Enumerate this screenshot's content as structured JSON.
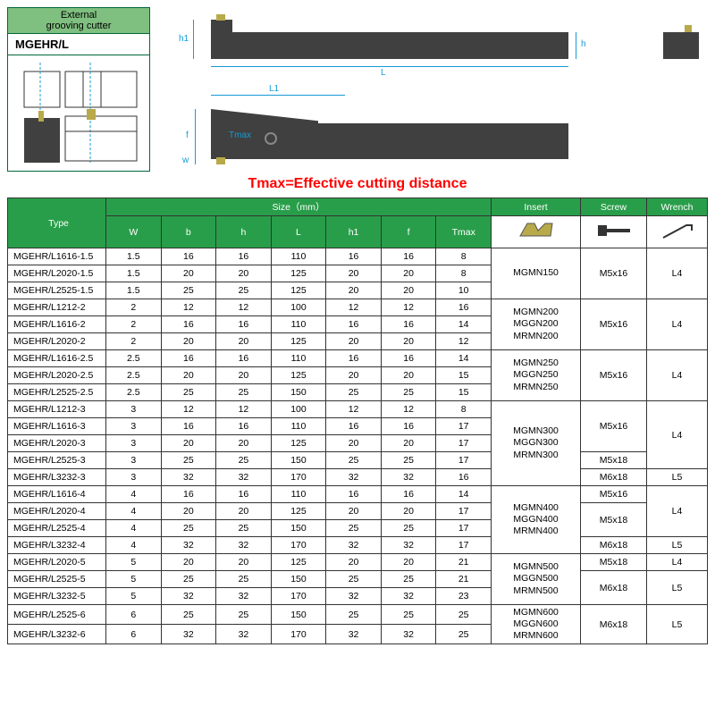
{
  "header": {
    "title_line1": "External",
    "title_line2": "grooving cutter",
    "model": "MGEHR/L"
  },
  "dims": {
    "h1": "h1",
    "h": "h",
    "L": "L",
    "L1": "L1",
    "f": "f",
    "w": "w",
    "Tmax": "Tmax"
  },
  "tmax_note": "Tmax=Effective cutting distance",
  "table": {
    "headers": {
      "type": "Type",
      "size": "Size（mm）",
      "size_cols": [
        "W",
        "b",
        "h",
        "L",
        "h1",
        "f",
        "Tmax"
      ],
      "insert": "Insert",
      "screw": "Screw",
      "wrench": "Wrench"
    },
    "groups": [
      {
        "rows": [
          {
            "type": "MGEHR/L1616-1.5",
            "W": "1.5",
            "b": "16",
            "h": "16",
            "L": "110",
            "h1": "16",
            "f": "16",
            "Tmax": "8"
          },
          {
            "type": "MGEHR/L2020-1.5",
            "W": "1.5",
            "b": "20",
            "h": "20",
            "L": "125",
            "h1": "20",
            "f": "20",
            "Tmax": "8"
          },
          {
            "type": "MGEHR/L2525-1.5",
            "W": "1.5",
            "b": "25",
            "h": "25",
            "L": "125",
            "h1": "20",
            "f": "20",
            "Tmax": "10"
          }
        ],
        "insert": [
          "MGMN150"
        ],
        "screw": [
          {
            "span": 3,
            "txt": "M5x16"
          }
        ],
        "wrench": [
          {
            "span": 3,
            "txt": "L4"
          }
        ]
      },
      {
        "rows": [
          {
            "type": "MGEHR/L1212-2",
            "W": "2",
            "b": "12",
            "h": "12",
            "L": "100",
            "h1": "12",
            "f": "12",
            "Tmax": "16"
          },
          {
            "type": "MGEHR/L1616-2",
            "W": "2",
            "b": "16",
            "h": "16",
            "L": "110",
            "h1": "16",
            "f": "16",
            "Tmax": "14"
          },
          {
            "type": "MGEHR/L2020-2",
            "W": "2",
            "b": "20",
            "h": "20",
            "L": "125",
            "h1": "20",
            "f": "20",
            "Tmax": "12"
          }
        ],
        "insert": [
          "MGMN200",
          "MGGN200",
          "MRMN200"
        ],
        "screw": [
          {
            "span": 3,
            "txt": "M5x16"
          }
        ],
        "wrench": [
          {
            "span": 3,
            "txt": "L4"
          }
        ]
      },
      {
        "rows": [
          {
            "type": "MGEHR/L1616-2.5",
            "W": "2.5",
            "b": "16",
            "h": "16",
            "L": "110",
            "h1": "16",
            "f": "16",
            "Tmax": "14"
          },
          {
            "type": "MGEHR/L2020-2.5",
            "W": "2.5",
            "b": "20",
            "h": "20",
            "L": "125",
            "h1": "20",
            "f": "20",
            "Tmax": "15"
          },
          {
            "type": "MGEHR/L2525-2.5",
            "W": "2.5",
            "b": "25",
            "h": "25",
            "L": "150",
            "h1": "25",
            "f": "25",
            "Tmax": "15"
          }
        ],
        "insert": [
          "MGMN250",
          "MGGN250",
          "MRMN250"
        ],
        "screw": [
          {
            "span": 3,
            "txt": "M5x16"
          }
        ],
        "wrench": [
          {
            "span": 3,
            "txt": "L4"
          }
        ]
      },
      {
        "rows": [
          {
            "type": "MGEHR/L1212-3",
            "W": "3",
            "b": "12",
            "h": "12",
            "L": "100",
            "h1": "12",
            "f": "12",
            "Tmax": "8"
          },
          {
            "type": "MGEHR/L1616-3",
            "W": "3",
            "b": "16",
            "h": "16",
            "L": "110",
            "h1": "16",
            "f": "16",
            "Tmax": "17"
          },
          {
            "type": "MGEHR/L2020-3",
            "W": "3",
            "b": "20",
            "h": "20",
            "L": "125",
            "h1": "20",
            "f": "20",
            "Tmax": "17"
          },
          {
            "type": "MGEHR/L2525-3",
            "W": "3",
            "b": "25",
            "h": "25",
            "L": "150",
            "h1": "25",
            "f": "25",
            "Tmax": "17"
          },
          {
            "type": "MGEHR/L3232-3",
            "W": "3",
            "b": "32",
            "h": "32",
            "L": "170",
            "h1": "32",
            "f": "32",
            "Tmax": "16"
          }
        ],
        "insert": [
          "MGMN300",
          "MGGN300",
          "MRMN300"
        ],
        "screw": [
          {
            "span": 3,
            "txt": "M5x16"
          },
          {
            "span": 1,
            "txt": "M5x18"
          },
          {
            "span": 1,
            "txt": "M6x18"
          }
        ],
        "wrench": [
          {
            "span": 4,
            "txt": "L4"
          },
          {
            "span": 1,
            "txt": "L5"
          }
        ]
      },
      {
        "rows": [
          {
            "type": "MGEHR/L1616-4",
            "W": "4",
            "b": "16",
            "h": "16",
            "L": "110",
            "h1": "16",
            "f": "16",
            "Tmax": "14"
          },
          {
            "type": "MGEHR/L2020-4",
            "W": "4",
            "b": "20",
            "h": "20",
            "L": "125",
            "h1": "20",
            "f": "20",
            "Tmax": "17"
          },
          {
            "type": "MGEHR/L2525-4",
            "W": "4",
            "b": "25",
            "h": "25",
            "L": "150",
            "h1": "25",
            "f": "25",
            "Tmax": "17"
          },
          {
            "type": "MGEHR/L3232-4",
            "W": "4",
            "b": "32",
            "h": "32",
            "L": "170",
            "h1": "32",
            "f": "32",
            "Tmax": "17"
          }
        ],
        "insert": [
          "MGMN400",
          "MGGN400",
          "MRMN400"
        ],
        "screw": [
          {
            "span": 1,
            "txt": "M5x16"
          },
          {
            "span": 2,
            "txt": "M5x18"
          },
          {
            "span": 1,
            "txt": "M6x18"
          }
        ],
        "wrench": [
          {
            "span": 3,
            "txt": "L4"
          },
          {
            "span": 1,
            "txt": "L5"
          }
        ]
      },
      {
        "rows": [
          {
            "type": "MGEHR/L2020-5",
            "W": "5",
            "b": "20",
            "h": "20",
            "L": "125",
            "h1": "20",
            "f": "20",
            "Tmax": "21"
          },
          {
            "type": "MGEHR/L2525-5",
            "W": "5",
            "b": "25",
            "h": "25",
            "L": "150",
            "h1": "25",
            "f": "25",
            "Tmax": "21"
          },
          {
            "type": "MGEHR/L3232-5",
            "W": "5",
            "b": "32",
            "h": "32",
            "L": "170",
            "h1": "32",
            "f": "32",
            "Tmax": "23"
          }
        ],
        "insert": [
          "MGMN500",
          "MGGN500",
          "MRMN500"
        ],
        "screw": [
          {
            "span": 1,
            "txt": "M5x18"
          },
          {
            "span": 2,
            "txt": "M6x18"
          }
        ],
        "wrench": [
          {
            "span": 1,
            "txt": "L4"
          },
          {
            "span": 2,
            "txt": "L5"
          }
        ]
      },
      {
        "rows": [
          {
            "type": "MGEHR/L2525-6",
            "W": "6",
            "b": "25",
            "h": "25",
            "L": "150",
            "h1": "25",
            "f": "25",
            "Tmax": "25"
          },
          {
            "type": "MGEHR/L3232-6",
            "W": "6",
            "b": "32",
            "h": "32",
            "L": "170",
            "h1": "32",
            "f": "32",
            "Tmax": "25"
          }
        ],
        "insert": [
          "MGMN600",
          "MGGN600",
          "MRMN600"
        ],
        "screw": [
          {
            "span": 2,
            "txt": "M6x18"
          }
        ],
        "wrench": [
          {
            "span": 2,
            "txt": "L5"
          }
        ]
      }
    ]
  },
  "colors": {
    "header_bg": "#299e4a",
    "label_bg": "#7fbf7f",
    "border": "#006838",
    "dim": "#169bd5",
    "tmax": "#ff0000",
    "tool_body": "#404040",
    "insert_gold": "#b8a94a"
  }
}
